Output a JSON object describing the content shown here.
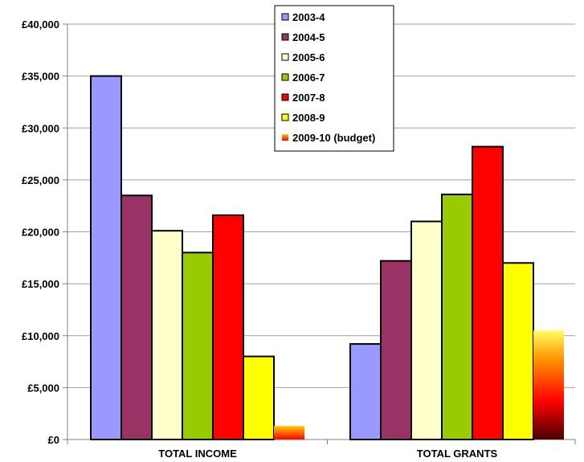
{
  "chart_data": {
    "type": "bar",
    "title": "",
    "xlabel": "",
    "ylabel": "",
    "ylim": [
      0,
      40000
    ],
    "y_tick_step": 5000,
    "y_tick_labels": [
      "£0",
      "£5,000",
      "£10,000",
      "£15,000",
      "£20,000",
      "£25,000",
      "£30,000",
      "£35,000",
      "£40,000"
    ],
    "grid": "horizontal",
    "legend_position": "top-center",
    "categories": [
      "TOTAL INCOME",
      "TOTAL GRANTS"
    ],
    "series": [
      {
        "name": "2003-4",
        "values": [
          35000,
          9200
        ],
        "color": "#9999ff"
      },
      {
        "name": "2004-5",
        "values": [
          23500,
          17200
        ],
        "color": "#993366"
      },
      {
        "name": "2005-6",
        "values": [
          20100,
          21000
        ],
        "color": "#ffffcc"
      },
      {
        "name": "2006-7",
        "values": [
          18000,
          23600
        ],
        "color": "#99cc00"
      },
      {
        "name": "2007-8",
        "values": [
          21600,
          28200
        ],
        "color": "#ff0000"
      },
      {
        "name": "2008-9",
        "values": [
          8000,
          17000
        ],
        "color": "#ffff00"
      },
      {
        "name": "2009-10 (budget)",
        "values": [
          1300,
          10500
        ],
        "color": "gradient-red-yellow"
      }
    ]
  }
}
